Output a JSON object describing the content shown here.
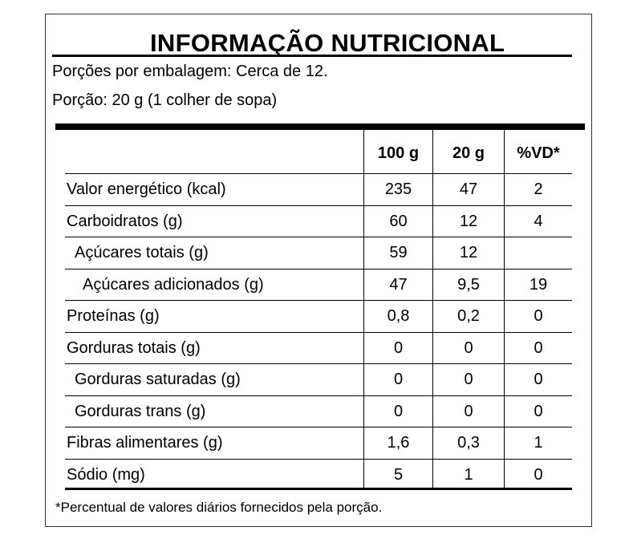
{
  "title": "INFORMAÇÃO NUTRICIONAL",
  "servings_per_package": "Porções por embalagem: Cerca de 12.",
  "serving_size": "Porção: 20 g (1 colher de sopa)",
  "columns": [
    "100 g",
    "20 g",
    "%VD*"
  ],
  "rows": [
    {
      "label": "Valor energético (kcal)",
      "indent": 0,
      "v100": "235",
      "v20": "47",
      "vd": "2"
    },
    {
      "label": "Carboidratos (g)",
      "indent": 0,
      "v100": "60",
      "v20": "12",
      "vd": "4"
    },
    {
      "label": "Açúcares totais (g)",
      "indent": 1,
      "v100": "59",
      "v20": "12",
      "vd": ""
    },
    {
      "label": "Açúcares adicionados (g)",
      "indent": 2,
      "v100": "47",
      "v20": "9,5",
      "vd": "19"
    },
    {
      "label": "Proteínas (g)",
      "indent": 0,
      "v100": "0,8",
      "v20": "0,2",
      "vd": "0"
    },
    {
      "label": "Gorduras totais (g)",
      "indent": 0,
      "v100": "0",
      "v20": "0",
      "vd": "0"
    },
    {
      "label": "Gorduras saturadas (g)",
      "indent": 1,
      "v100": "0",
      "v20": "0",
      "vd": "0"
    },
    {
      "label": "Gorduras trans (g)",
      "indent": 1,
      "v100": "0",
      "v20": "0",
      "vd": "0"
    },
    {
      "label": "Fibras alimentares (g)",
      "indent": 0,
      "v100": "1,6",
      "v20": "0,3",
      "vd": "1"
    },
    {
      "label": "Sódio (mg)",
      "indent": 0,
      "v100": "5",
      "v20": "1",
      "vd": "0"
    }
  ],
  "footnote": "*Percentual de valores diários fornecidos pela porção."
}
